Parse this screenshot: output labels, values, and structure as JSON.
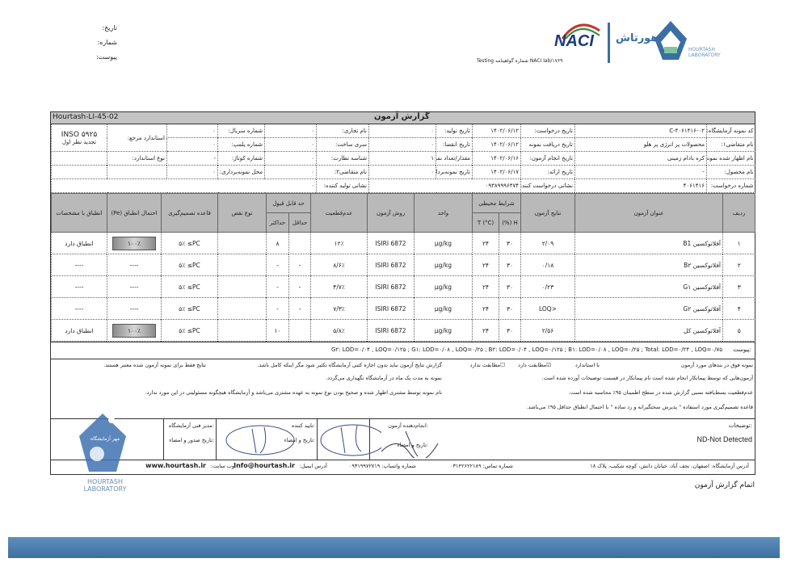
{
  "letterhead": {
    "date_label": "تاریخ:",
    "number_label": "شماره:",
    "attachment_label": "پیوست:",
    "naci_logo": "NACI",
    "naci_caption": "Testing شماره گواهینامه NACI lab/۱۷۶۹",
    "hourtash_logo_fa": "هورتاش",
    "hourtash_logo_en": "HOURTASH LABORATORY"
  },
  "report": {
    "code": "Hourtash-LI-45-02",
    "title": "گزارش آزمون"
  },
  "info": {
    "rows": [
      [
        "کد نمونه آزمایشگاه:",
        "۴۰۶۱۴۱۶-۰۲-C",
        "تاریخ درخواست:",
        "۱۴۰۲/۰۶/۱۲",
        "تاریخ تولید:",
        "۰",
        "نام تجاری:",
        "۰",
        "شماره سریال:",
        "۰"
      ],
      [
        "نام متقاضی۱:",
        "محصولات پر انرژی پر هلو",
        "تاریخ دریافت نمونه",
        "۱۴۰۲/۰۶/۱۲",
        "تاریخ انقضا:",
        "۰",
        "سری ساخت:",
        "۰",
        "شماره پلمپ:",
        "۰"
      ],
      [
        "نام اظهار شده نمونه:",
        "کره بادام زمینی",
        "تاریخ انجام آزمون:",
        "۱۴۰۲/۰۶/۱۶",
        "مقدار/تعداد نمونه:",
        "۱",
        "شناسه نظارت:",
        "۰",
        "شماره کوتاژ:",
        "-"
      ],
      [
        "نام محصول:",
        "-",
        "تاریخ ارائه:",
        "۱۴۰۲/۰۶/۱۷",
        "تاریخ نمونه‌برداری:",
        "۰",
        "نام متقاضی۲:",
        "۰",
        "محل نمونه‌برداری:",
        "۰"
      ]
    ],
    "ref_standard_label": "استاندارد مرجع:",
    "ref_standard_value": "INSO ۵۹۲۵",
    "ref_standard_rev": "تجدید نظر اول",
    "standard_type_label": "نوع استاندارد:",
    "request_no_label": "شماره درخواست:",
    "request_no": "۴۰۶۱۴۱۶",
    "requester_addr_label": "نشانی درخواست کننده:",
    "requester_addr": "۰۹۳۸۹۹۹۶۴۷۴",
    "producer_addr_label": "نشانی تولید کننده:",
    "producer_addr": "۰"
  },
  "table": {
    "headers": {
      "row": "ردیف",
      "title": "عنوان آزمون",
      "result": "نتایج آزمون",
      "env": "شرایط محیطی",
      "T": "T (°C)",
      "H": "H (%)",
      "unit": "واحد",
      "method": "روش آزمون",
      "uncertainty": "عدم‌قطعیت",
      "limit": "حد قابل قبول",
      "min": "حداقل",
      "max": "حد‌اکثر",
      "defect": "نوع نقص",
      "rule": "قاعده تصمیم‌گیری",
      "pe": "احتمال انطباق (Pe)",
      "conformity": "انطباق با مشخصات"
    },
    "rows": [
      {
        "n": "۱",
        "title": "آفلاتوکسین B1",
        "result": "۲/۰۹",
        "H": "۳۰",
        "T": "۲۴",
        "unit": "µg/kg",
        "method": "ISIRI 6872",
        "unc": "۱۲٪",
        "min": "",
        "max": "۸",
        "defect": "",
        "rule": "۵٪ ≤PC",
        "pe": "۱۰۰٪",
        "conf": "انطباق دارد",
        "pass": true
      },
      {
        "n": "۲",
        "title": "آفلاتوکسین B۲",
        "result": "۰/۱۸",
        "H": "۳۰",
        "T": "۲۴",
        "unit": "µg/kg",
        "method": "ISIRI 6872",
        "unc": "۸/۶٪",
        "min": "-",
        "max": "-",
        "defect": "",
        "rule": "۵٪ ≤PC",
        "pe": "----",
        "conf": "----",
        "pass": false
      },
      {
        "n": "۳",
        "title": "آفلاتوکسین G۱",
        "result": "۰/۲۳",
        "H": "۳۰",
        "T": "۲۴",
        "unit": "µg/kg",
        "method": "ISIRI 6872",
        "unc": "۴/۷٪",
        "min": "-",
        "max": "-",
        "defect": "",
        "rule": "۵٪ ≤PC",
        "pe": "----",
        "conf": "----",
        "pass": false
      },
      {
        "n": "۴",
        "title": "آفلاتوکسین G۲",
        "result": "<LOQ",
        "H": "۳۰",
        "T": "۲۴",
        "unit": "µg/kg",
        "method": "ISIRI 6872",
        "unc": "۷/۳٪",
        "min": "-",
        "max": "-",
        "defect": "",
        "rule": "۵٪ ≤PC",
        "pe": "----",
        "conf": "----",
        "pass": false
      },
      {
        "n": "۵",
        "title": "آفلاتوکسین کل",
        "result": "۲/۵۶",
        "H": "۳۰",
        "T": "۲۴",
        "unit": "µg/kg",
        "method": "ISIRI 6872",
        "unc": "۵/۸٪",
        "min": "",
        "max": "۱۰",
        "defect": "",
        "rule": "۵٪ ≤PC",
        "pe": "۱۰۰٪",
        "conf": "انطباق دارد",
        "pass": true
      }
    ],
    "notes_label": "پیوست:",
    "notes": "G۲: LOD=۰/۰۴ , LOQ=۰/۱۲۵ ; G۱: LOD=۰/۰۸ , LOQ=۰/۲۵ ; B۲: LOD=۰/۰۴ , LOQ=۰/۱۲۵ ; B۱: LOD=۰/۰۸ , LOQ=۰/۲۵ ; Total: LOD=۰/۲۴ , LOQ=۰/۷۵"
  },
  "footnotes": {
    "sample_line": "نمونه فوق در بندهای مورد آزمون",
    "with_standard": "با استاندارد",
    "conforms": "مطابقت دارد",
    "not_conforms": "مطابقت ندارد",
    "n1": "آزمون‌هایی که توسط پیمانکار انجام شده است نام پیمانکار در قسمت توضیحات آورده شده است.",
    "n2": "عدم‌قطعیت بسط‌یافته نسبی گزارش شده در سطح اطمینان ۹۵٪ محاسبه شده است.",
    "n3": "قاعده تصمیم‌گیری مورد استفاده \" پذیرش سختگیرانه و رد ساده \" با احتمال انطباق حداقل ۹۵٪ می‌باشد.",
    "n4": "گزارش نتایج آزمون نباید بدون اجازه کتبی آزمایشگاه تکثیر شود مگر اینکه کامل باشد.",
    "n5": "نتایج فقط برای نمونه آزمون شده معتبر هستند.",
    "n6": "نمونه به مدت یک ماه در آزمایشگاه نگهداری می‌گردد.",
    "n7": "نام نمونه توسط مشتری اظهار شده و صحیح بودن نوع نمونه به عهده مشتری می‌باشد و آزمایشگاه هیچگونه مسئولیتی در این مورد ندارد."
  },
  "signatures": {
    "remarks_label": "توضیحات:",
    "remarks": "ND-Not Detected",
    "tester": "انجام‌دهنده آزمون:",
    "tester_sign": "تاریخ و امضاء:",
    "approver": "تایید کننده:",
    "approver_sign": "تاریخ و امضاء:",
    "manager": "مدیر فنی آزمایشگاه:",
    "manager_sign": "تاریخ صدور و امضاء:",
    "stamp": "مهر آزمایشگاه"
  },
  "contact": {
    "address": "آدرس آزمایشگاه: اصفهان، نجف آباد، خیابان دانش، کوچه شکیب، پلاک ۱۸",
    "phone": "شماره تماس: ۰۳۱۴۲۶۲۲۱۸۹",
    "whatsapp": "شماره واتساپ: ۰۹۳۱۹۹۷۲۷۱۹",
    "email_label": "آدرس ایمیل:",
    "email": "Info@hourtash.ir",
    "site_label": "وب سایت:",
    "site": "www.hourtash.ir"
  },
  "end_text": "اتمام گزارش آزمون",
  "colors": {
    "header_gray": "#b9b9b9",
    "bottom_bar": "#4a7fae",
    "logo_blue": "#3a6ea5",
    "naci_red": "#c0392b",
    "naci_green": "#2e8b3a"
  }
}
